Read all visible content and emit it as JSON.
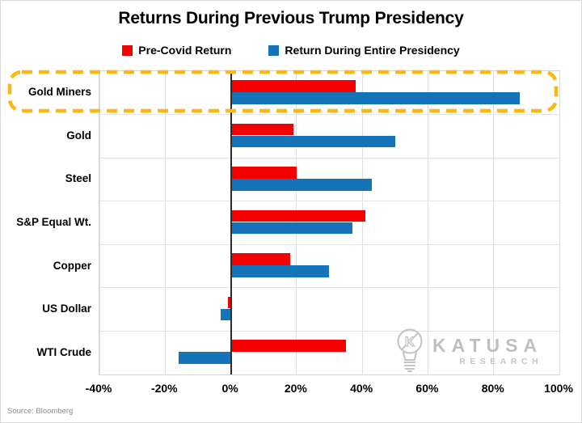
{
  "title": "Returns During Previous Trump Presidency",
  "legend": [
    {
      "label": "Pre-Covid Return",
      "color": "#F40000"
    },
    {
      "label": "Return During Entire Presidency",
      "color": "#1573B9"
    }
  ],
  "source_note": "Source: Bloomberg",
  "logo": {
    "brand": "KATUSA",
    "sub": "RESEARCH",
    "icon": "lightbulb-k-icon",
    "color": "#c0c0c0"
  },
  "chart_data": {
    "type": "bar",
    "orientation": "horizontal",
    "title": "Returns During Previous Trump Presidency",
    "categories": [
      "Gold Miners",
      "Gold",
      "Steel",
      "S&P Equal Wt.",
      "Copper",
      "US Dollar",
      "WTI Crude"
    ],
    "series": [
      {
        "name": "Pre-Covid Return",
        "color": "#F40000",
        "values": [
          38,
          19,
          20,
          41,
          18,
          -1,
          35
        ]
      },
      {
        "name": "Return During Entire Presidency",
        "color": "#1573B9",
        "values": [
          88,
          50,
          43,
          37,
          30,
          -3,
          -16
        ]
      }
    ],
    "xlim": [
      -40,
      100
    ],
    "xtick_values": [
      -40,
      -20,
      0,
      20,
      40,
      60,
      80,
      100
    ],
    "xtick_labels": [
      "-40%",
      "-20%",
      "0%",
      "20%",
      "40%",
      "60%",
      "80%",
      "100%"
    ],
    "grid": true,
    "legend_position": "top",
    "highlight": {
      "category": "Gold Miners",
      "color": "#FCB712",
      "style": "dashed-rounded-box"
    }
  }
}
